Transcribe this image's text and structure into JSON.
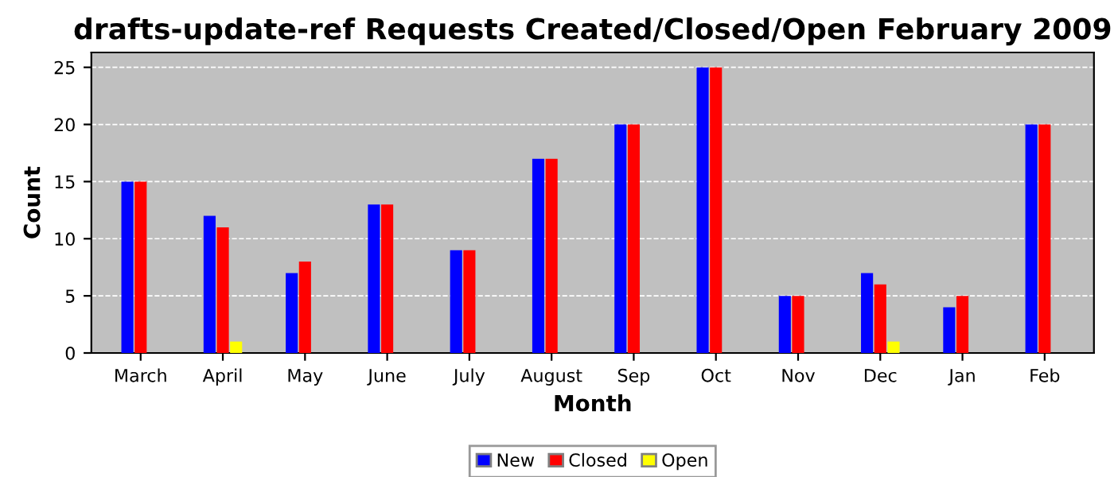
{
  "chart_data": {
    "type": "bar",
    "title": "drafts-update-ref Requests Created/Closed/Open February 2009",
    "xlabel": "Month",
    "ylabel": "Count",
    "categories": [
      "March",
      "April",
      "May",
      "June",
      "July",
      "August",
      "Sep",
      "Oct",
      "Nov",
      "Dec",
      "Jan",
      "Feb"
    ],
    "series": [
      {
        "name": "New",
        "color": "#0000ff",
        "values": [
          15,
          12,
          7,
          13,
          9,
          17,
          20,
          25,
          5,
          7,
          4,
          20
        ]
      },
      {
        "name": "Closed",
        "color": "#ff0000",
        "values": [
          15,
          11,
          8,
          13,
          9,
          17,
          20,
          25,
          5,
          6,
          5,
          20
        ]
      },
      {
        "name": "Open",
        "color": "#ffff00",
        "values": [
          0,
          1,
          0,
          0,
          0,
          0,
          0,
          0,
          0,
          1,
          0,
          0
        ]
      }
    ],
    "ylim": [
      0,
      26.3
    ],
    "yticks": [
      0,
      5,
      10,
      15,
      20,
      25
    ],
    "grid": "y",
    "legend": "bottom"
  }
}
